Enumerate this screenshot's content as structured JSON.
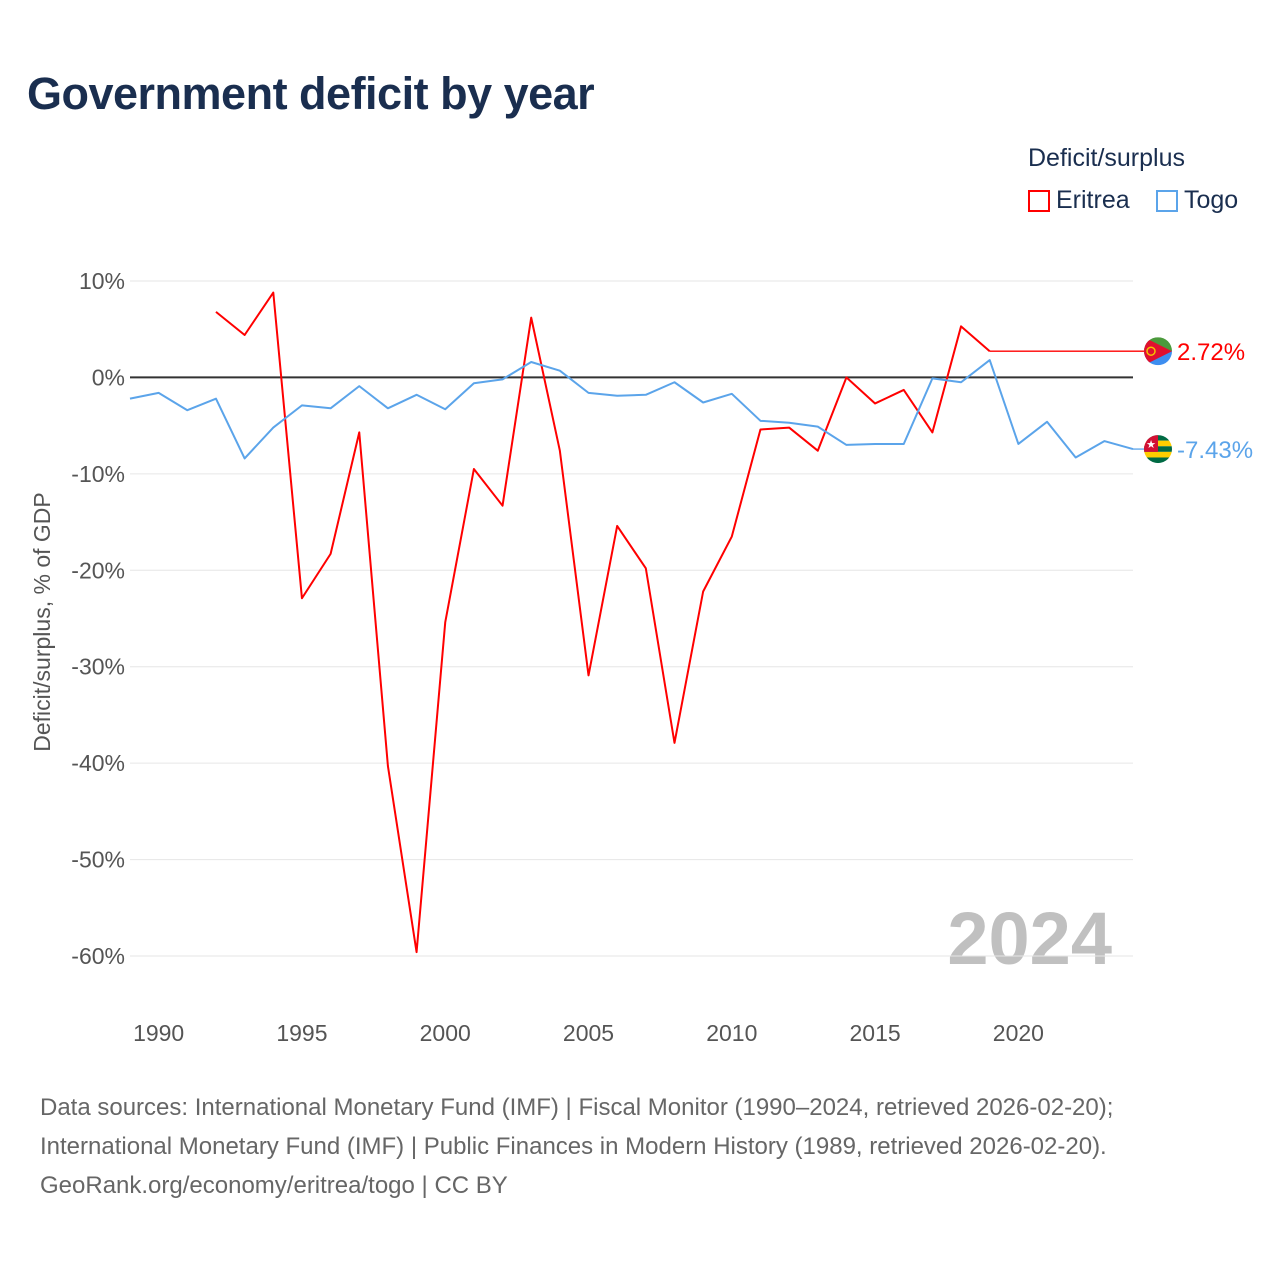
{
  "title": "Government deficit by year",
  "legend": {
    "title": "Deficit/surplus",
    "items": [
      {
        "name": "Eritrea",
        "color": "#ff0000"
      },
      {
        "name": "Togo",
        "color": "#5ba4ea"
      }
    ]
  },
  "chart_data": {
    "type": "line",
    "title": "Government deficit by year",
    "ylabel": "Deficit/surplus, % of GDP",
    "xlabel": "",
    "xlim": [
      1989,
      2024
    ],
    "ylim": [
      -60,
      10
    ],
    "x_ticks": [
      "1990",
      "1995",
      "2000",
      "2005",
      "2010",
      "2015",
      "2020"
    ],
    "y_ticks": [
      "10%",
      "0%",
      "-10%",
      "-20%",
      "-30%",
      "-40%",
      "-50%",
      "-60%"
    ],
    "year_watermark": "2024",
    "series": [
      {
        "name": "Eritrea",
        "color": "#ff0000",
        "end_label": "2.72%",
        "x": [
          1992,
          1993,
          1994,
          1995,
          1996,
          1997,
          1998,
          1999,
          2000,
          2001,
          2002,
          2003,
          2004,
          2005,
          2006,
          2007,
          2008,
          2009,
          2010,
          2011,
          2012,
          2013,
          2014,
          2015,
          2016,
          2017,
          2018,
          2019
        ],
        "values": [
          6.8,
          4.4,
          8.8,
          -22.9,
          -18.3,
          -5.7,
          -40.3,
          -59.6,
          -25.4,
          -9.5,
          -13.3,
          6.2,
          -7.6,
          -30.9,
          -15.4,
          -19.8,
          -37.9,
          -22.2,
          -16.5,
          -5.4,
          -5.2,
          -7.6,
          0.0,
          -2.7,
          -1.3,
          -5.7,
          5.3,
          2.72
        ]
      },
      {
        "name": "Togo",
        "color": "#5ba4ea",
        "end_label": "-7.43%",
        "x": [
          1989,
          1990,
          1991,
          1992,
          1993,
          1994,
          1995,
          1996,
          1997,
          1998,
          1999,
          2000,
          2001,
          2002,
          2003,
          2004,
          2005,
          2006,
          2007,
          2008,
          2009,
          2010,
          2011,
          2012,
          2013,
          2014,
          2015,
          2016,
          2017,
          2018,
          2019,
          2020,
          2021,
          2022,
          2023,
          2024
        ],
        "values": [
          -2.2,
          -1.6,
          -3.4,
          -2.2,
          -8.4,
          -5.2,
          -2.9,
          -3.2,
          -0.9,
          -3.2,
          -1.8,
          -3.3,
          -0.6,
          -0.2,
          1.6,
          0.7,
          -1.6,
          -1.9,
          -1.8,
          -0.5,
          -2.6,
          -1.7,
          -4.5,
          -4.7,
          -5.1,
          -7.0,
          -6.9,
          -6.9,
          -0.1,
          -0.5,
          1.8,
          -6.9,
          -4.6,
          -8.3,
          -6.6,
          -7.43
        ]
      }
    ]
  },
  "footer": {
    "line1": "Data sources: International Monetary Fund (IMF) | Fiscal Monitor (1990–2024, retrieved 2026-02-20);",
    "line2": "International Monetary Fund (IMF) | Public Finances in Modern History (1989, retrieved 2026-02-20).",
    "line3": "GeoRank.org/economy/eritrea/togo | CC BY"
  }
}
